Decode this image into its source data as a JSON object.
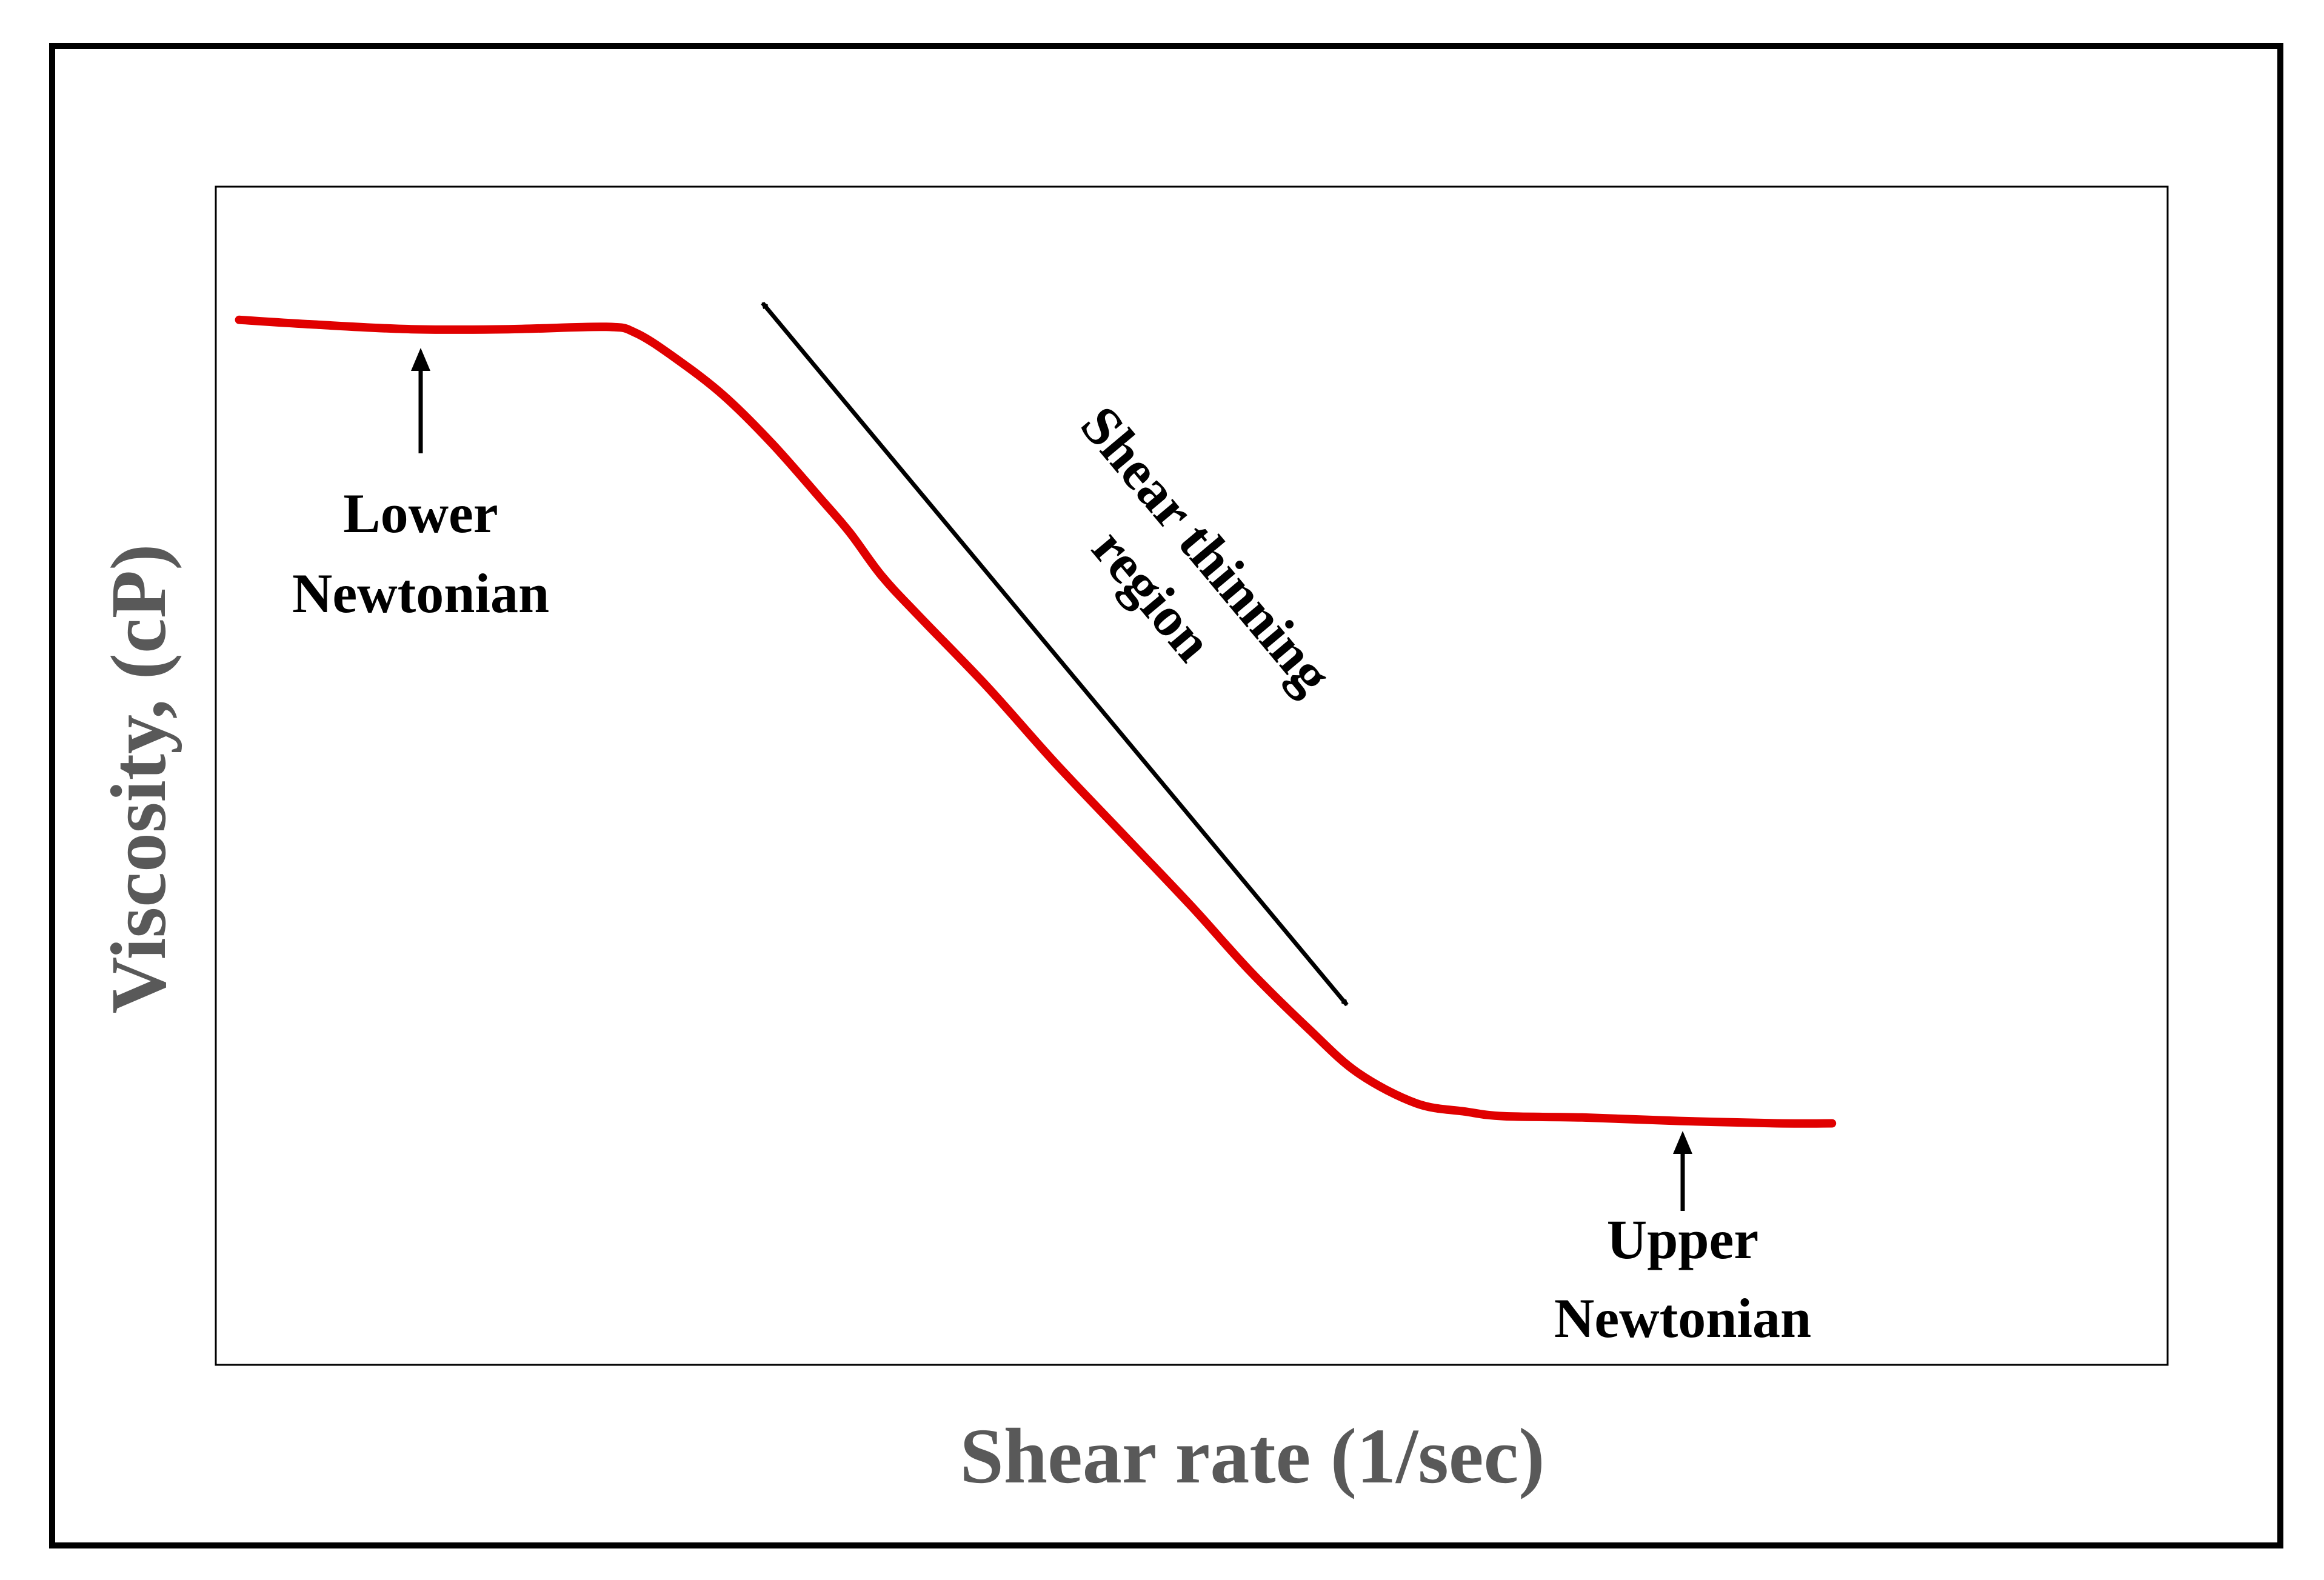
{
  "chart_data": {
    "type": "line",
    "title": "",
    "xlabel": "Shear rate (1/sec)",
    "ylabel": "Viscosity, (cP)",
    "grid": false,
    "legend": "none",
    "xlim": [
      0,
      100
    ],
    "ylim": [
      0,
      100
    ],
    "series": [
      {
        "color": "#e00000",
        "points": [
          [
            1.2,
            88.7
          ],
          [
            5,
            88.3
          ],
          [
            10,
            87.9
          ],
          [
            15,
            87.9
          ],
          [
            20,
            88.1
          ],
          [
            21.5,
            87.6
          ],
          [
            23.5,
            85.5
          ],
          [
            26,
            82.3
          ],
          [
            28.5,
            78.2
          ],
          [
            31,
            73.5
          ],
          [
            32.5,
            70.6
          ],
          [
            34.1,
            67.0
          ],
          [
            36,
            63.6
          ],
          [
            39.5,
            57.6
          ],
          [
            43,
            51.1
          ],
          [
            46.5,
            45.0
          ],
          [
            50,
            38.9
          ],
          [
            53,
            33.4
          ],
          [
            56,
            28.5
          ],
          [
            58.5,
            24.8
          ],
          [
            61.5,
            22.2
          ],
          [
            64,
            21.5
          ],
          [
            66,
            21.1
          ],
          [
            70,
            21.0
          ],
          [
            75,
            20.7
          ],
          [
            80,
            20.5
          ],
          [
            82.8,
            20.5
          ]
        ]
      }
    ],
    "annotations": {
      "lower": {
        "line1": "Lower",
        "line2": "Newtonian"
      },
      "upper": {
        "line1": "Upper",
        "line2": "Newtonian"
      },
      "shear": {
        "line1": "Shear thinning",
        "line2": "region"
      }
    }
  }
}
